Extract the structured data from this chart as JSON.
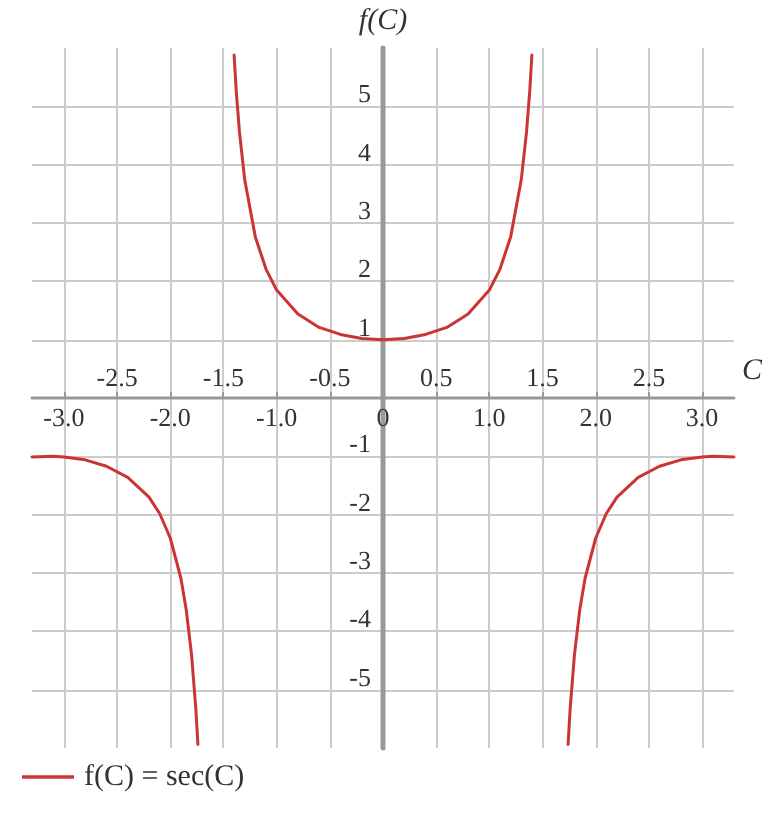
{
  "chart_data": {
    "type": "line",
    "xlabel": "C",
    "ylabel": "f(C)",
    "x": [
      -3.3,
      -3.1,
      -3.0,
      -2.8,
      -2.6,
      -2.4,
      -2.2,
      -2.1,
      -2.0,
      -1.9,
      -1.85,
      -1.8,
      -1.76,
      -1.74,
      -1.57,
      -1.4,
      -1.38,
      -1.35,
      -1.3,
      -1.2,
      -1.1,
      -1.0,
      -0.8,
      -0.6,
      -0.4,
      -0.2,
      0,
      0.2,
      0.4,
      0.6,
      0.8,
      1.0,
      1.1,
      1.2,
      1.3,
      1.35,
      1.38,
      1.4,
      1.57,
      1.74,
      1.76,
      1.8,
      1.85,
      1.9,
      2.0,
      2.1,
      2.2,
      2.4,
      2.6,
      2.8,
      3.0,
      3.1,
      3.3
    ],
    "series": [
      {
        "name": "f(C) = sec(C)",
        "color": "#cc3333",
        "values": [
          -1.01,
          -1.0,
          -1.01,
          -1.06,
          -1.17,
          -1.36,
          -1.7,
          -1.98,
          -2.4,
          -3.09,
          -3.63,
          -4.4,
          -5.32,
          -5.94,
          null,
          5.88,
          5.27,
          4.57,
          3.74,
          2.76,
          2.21,
          1.85,
          1.44,
          1.21,
          1.09,
          1.02,
          1.0,
          1.02,
          1.09,
          1.21,
          1.44,
          1.85,
          2.21,
          2.76,
          3.74,
          4.57,
          5.27,
          5.88,
          null,
          -5.94,
          -5.32,
          -4.4,
          -3.63,
          -3.09,
          -2.4,
          -1.98,
          -1.7,
          -1.36,
          -1.17,
          -1.06,
          -1.01,
          -1.0,
          -1.01
        ]
      }
    ],
    "xlim": [
      -3.3,
      3.3
    ],
    "ylim": [
      -6,
      6
    ],
    "xticks": [
      {
        "value": -3,
        "label": "-3.0"
      },
      {
        "value": -2,
        "label": "-2.0"
      },
      {
        "value": -1,
        "label": "-1.0"
      },
      0,
      {
        "value": 1,
        "label": "1.0"
      },
      {
        "value": 2,
        "label": "2.0"
      },
      {
        "value": 3,
        "label": "3.0"
      }
    ],
    "x2lim": [
      -3.3,
      3.3
    ],
    "x2ticks": [
      -2.5,
      -1.5,
      -0.5,
      0.5,
      1.5,
      2.5
    ],
    "yticks": [
      -5,
      -4,
      -3,
      -2,
      -1,
      1,
      2,
      3,
      4,
      5
    ],
    "grid": true,
    "legend": "bottom left",
    "marker": "none",
    "line_style": "solid"
  }
}
